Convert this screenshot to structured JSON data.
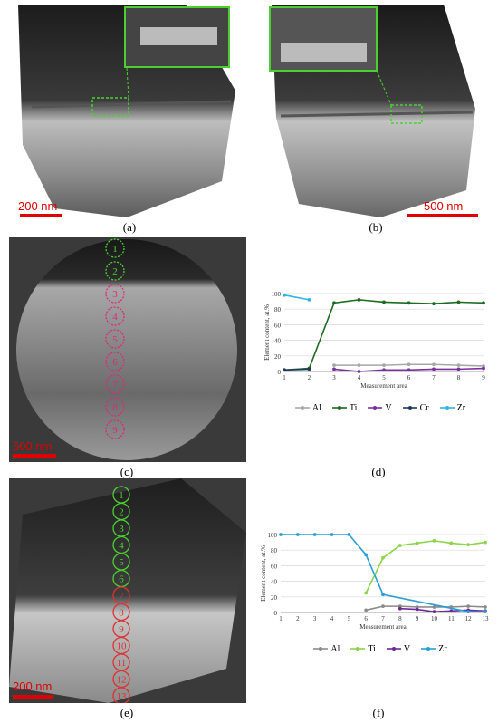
{
  "panels": {
    "a": {
      "label": "(a)",
      "scale": "200 nm"
    },
    "b": {
      "label": "(b)",
      "scale": "500 nm"
    },
    "c": {
      "label": "(c)",
      "scale": "500 nm",
      "green_markers": [
        "1",
        "2"
      ],
      "pink_markers": [
        "3",
        "4",
        "5",
        "6",
        "7",
        "8",
        "9"
      ]
    },
    "d": {
      "label": "(d)"
    },
    "e": {
      "label": "(e)",
      "scale": "200 nm",
      "green_markers": [
        "1",
        "2",
        "3",
        "4",
        "5",
        "6"
      ],
      "red_markers": [
        "7",
        "8",
        "9",
        "10",
        "11",
        "12",
        "13"
      ]
    },
    "f": {
      "label": "(f)"
    }
  },
  "colors": {
    "al": "#a8a8a8",
    "ti_d": "#1e6b22",
    "v": "#7b2fa0",
    "cr": "#1f3b5c",
    "zr_d": "#2fb4e6",
    "al_f": "#8a8a8a",
    "ti_f": "#8cd44a",
    "v_f": "#6b2a98",
    "zr_f": "#2a9fd6",
    "marker_green": "#4bd12f",
    "marker_pink": "#e0287a",
    "marker_red": "#e03030",
    "scale": "#e00000"
  },
  "chart_data": [
    {
      "type": "line",
      "panel": "d",
      "ylabel": "Element content, at.%",
      "xlabel": "Measurement area",
      "x": [
        1,
        2,
        3,
        4,
        5,
        6,
        7,
        8,
        9
      ],
      "ylim": [
        0,
        100
      ],
      "yticks": [
        0,
        20,
        40,
        60,
        80,
        100
      ],
      "series": [
        {
          "name": "Al",
          "color": "#a8a8a8",
          "x": [
            3,
            4,
            5,
            6,
            7,
            8,
            9
          ],
          "values": [
            8,
            8,
            8,
            9,
            9,
            8,
            7
          ]
        },
        {
          "name": "Ti",
          "color": "#1e6b22",
          "x": [
            1,
            2,
            3,
            4,
            5,
            6,
            7,
            8,
            9
          ],
          "values": [
            2,
            4,
            88,
            92,
            89,
            88,
            87,
            89,
            88
          ]
        },
        {
          "name": "V",
          "color": "#7b2fa0",
          "x": [
            3,
            4,
            5,
            6,
            7,
            8,
            9
          ],
          "values": [
            3,
            0,
            2,
            2,
            3,
            3,
            4
          ]
        },
        {
          "name": "Cr",
          "color": "#1f3b5c",
          "x": [
            1,
            2
          ],
          "values": [
            2,
            3
          ]
        },
        {
          "name": "Zr",
          "color": "#2fb4e6",
          "x": [
            1,
            2
          ],
          "values": [
            98,
            92
          ]
        }
      ]
    },
    {
      "type": "line",
      "panel": "f",
      "ylabel": "Element content, at.%",
      "xlabel": "Measurement area",
      "x": [
        1,
        2,
        3,
        4,
        5,
        6,
        7,
        8,
        9,
        10,
        11,
        12,
        13
      ],
      "ylim": [
        0,
        100
      ],
      "yticks": [
        0,
        20,
        40,
        60,
        80,
        100
      ],
      "series": [
        {
          "name": "Al",
          "color": "#8a8a8a",
          "x": [
            6,
            7,
            8,
            9,
            10,
            11,
            12,
            13
          ],
          "values": [
            3,
            8,
            8,
            7,
            7,
            7,
            8,
            7
          ]
        },
        {
          "name": "Ti",
          "color": "#8cd44a",
          "x": [
            6,
            7,
            8,
            9,
            10,
            11,
            12,
            13
          ],
          "values": [
            25,
            70,
            86,
            89,
            92,
            89,
            87,
            90
          ]
        },
        {
          "name": "V",
          "color": "#6b2a98",
          "x": [
            8,
            9,
            10,
            11,
            12,
            13
          ],
          "values": [
            5,
            4,
            1,
            2,
            3,
            2
          ]
        },
        {
          "name": "Zr",
          "color": "#2a9fd6",
          "x": [
            1,
            2,
            3,
            4,
            5,
            6,
            7,
            12,
            13
          ],
          "values": [
            100,
            100,
            100,
            100,
            100,
            74,
            23,
            1,
            1
          ]
        }
      ]
    }
  ]
}
